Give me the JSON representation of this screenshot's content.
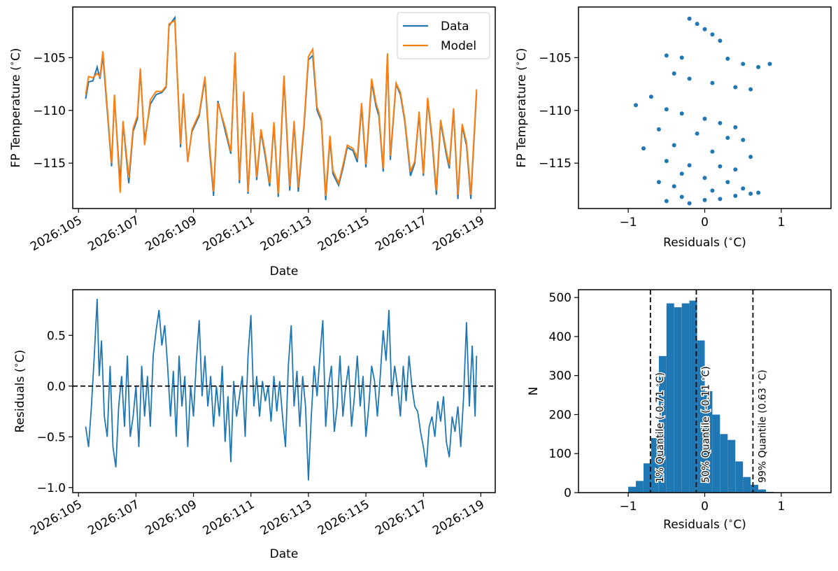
{
  "chart_data": [
    {
      "id": "top-left",
      "type": "line",
      "xlabel": "Date",
      "ylabel": "FP Temperature ($^\\circ$C)",
      "ylabel_text": "FP Temperature (",
      "ylabel_unit": "C)",
      "xlim": [
        104.8,
        119.5
      ],
      "ylim": [
        -119.3,
        -100.2
      ],
      "xticks": [
        105,
        107,
        109,
        111,
        113,
        115,
        117,
        119
      ],
      "xtick_labels": [
        "2026:105",
        "2026:107",
        "2026:109",
        "2026:111",
        "2026:113",
        "2026:115",
        "2026:117",
        "2026:119"
      ],
      "yticks": [
        -105,
        -110,
        -115
      ],
      "ytick_labels": [
        "−105",
        "−110",
        "−115"
      ],
      "legend": {
        "position": "top-right",
        "entries": [
          "Data",
          "Model"
        ]
      },
      "series": [
        {
          "name": "Data",
          "color": "#1f77b4",
          "x": [
            105.25,
            105.35,
            105.5,
            105.65,
            105.75,
            105.85,
            106.0,
            106.15,
            106.25,
            106.45,
            106.55,
            106.75,
            106.9,
            107.05,
            107.15,
            107.3,
            107.5,
            107.7,
            107.9,
            108.05,
            108.15,
            108.35,
            108.45,
            108.55,
            108.65,
            108.8,
            108.95,
            109.2,
            109.4,
            109.55,
            109.7,
            109.85,
            110.1,
            110.3,
            110.45,
            110.6,
            110.75,
            110.9,
            111.05,
            111.2,
            111.35,
            111.5,
            111.65,
            111.8,
            111.95,
            112.15,
            112.35,
            112.5,
            112.65,
            112.85,
            113.0,
            113.15,
            113.3,
            113.45,
            113.6,
            113.75,
            113.85,
            114.05,
            114.2,
            114.35,
            114.55,
            114.7,
            114.85,
            115.0,
            115.2,
            115.35,
            115.45,
            115.6,
            115.75,
            115.85,
            116.05,
            116.2,
            116.35,
            116.55,
            116.7,
            116.85,
            117.0,
            117.15,
            117.3,
            117.45,
            117.6,
            117.8,
            117.9,
            118.05,
            118.2,
            118.35,
            118.5,
            118.65,
            118.85
          ],
          "y": [
            -108.9,
            -107.3,
            -107.2,
            -105.9,
            -107.0,
            -104.8,
            -110.0,
            -115.3,
            -108.8,
            -116.9,
            -111.2,
            -116.9,
            -112.0,
            -110.8,
            -106.2,
            -112.9,
            -109.4,
            -108.5,
            -108.3,
            -107.8,
            -102.0,
            -101.2,
            -107.5,
            -113.5,
            -108.6,
            -114.8,
            -112.0,
            -110.5,
            -107.0,
            -113.4,
            -118.1,
            -109.1,
            -111.9,
            -114.1,
            -104.6,
            -116.9,
            -108.3,
            -117.9,
            -110.4,
            -116.6,
            -112.0,
            -114.4,
            -117.2,
            -111.3,
            -118.2,
            -107.0,
            -117.6,
            -111.2,
            -117.7,
            -111.4,
            -105.2,
            -104.8,
            -110.0,
            -111.0,
            -118.5,
            -112.7,
            -116.0,
            -117.1,
            -115.5,
            -113.5,
            -113.8,
            -114.9,
            -109.6,
            -115.4,
            -107.3,
            -109.6,
            -110.5,
            -115.8,
            -104.8,
            -114.7,
            -107.5,
            -108.5,
            -111.0,
            -116.2,
            -115.0,
            -110.4,
            -116.2,
            -109.0,
            -112.8,
            -118.0,
            -111.1,
            -114.2,
            -115.5,
            -110.0,
            -118.4,
            -111.5,
            -113.3,
            -118.4,
            -108.3
          ]
        },
        {
          "name": "Model",
          "color": "#ff7f0e",
          "x": [
            105.25,
            105.35,
            105.5,
            105.65,
            105.75,
            105.85,
            106.0,
            106.15,
            106.25,
            106.45,
            106.55,
            106.75,
            106.9,
            107.05,
            107.15,
            107.3,
            107.5,
            107.7,
            107.9,
            108.05,
            108.15,
            108.35,
            108.45,
            108.55,
            108.65,
            108.8,
            108.95,
            109.2,
            109.4,
            109.55,
            109.7,
            109.85,
            110.1,
            110.3,
            110.45,
            110.6,
            110.75,
            110.9,
            111.05,
            111.2,
            111.35,
            111.5,
            111.65,
            111.8,
            111.95,
            112.15,
            112.35,
            112.5,
            112.65,
            112.85,
            113.0,
            113.15,
            113.3,
            113.45,
            113.6,
            113.75,
            113.85,
            114.05,
            114.2,
            114.35,
            114.55,
            114.7,
            114.85,
            115.0,
            115.2,
            115.35,
            115.45,
            115.6,
            115.75,
            115.85,
            116.05,
            116.2,
            116.35,
            116.55,
            116.7,
            116.85,
            117.0,
            117.15,
            117.3,
            117.45,
            117.6,
            117.8,
            117.9,
            118.05,
            118.2,
            118.35,
            118.5,
            118.65,
            118.85
          ],
          "y": [
            -108.5,
            -106.8,
            -106.9,
            -106.5,
            -106.8,
            -104.4,
            -109.7,
            -115.0,
            -108.5,
            -117.8,
            -111.0,
            -116.4,
            -111.7,
            -110.5,
            -106.0,
            -113.3,
            -109.0,
            -108.2,
            -108.2,
            -107.7,
            -101.8,
            -101.5,
            -107.4,
            -113.2,
            -108.4,
            -114.9,
            -111.8,
            -110.3,
            -106.8,
            -113.0,
            -117.7,
            -109.3,
            -111.6,
            -113.9,
            -104.5,
            -116.6,
            -108.2,
            -117.7,
            -110.2,
            -116.3,
            -111.8,
            -114.1,
            -116.9,
            -111.1,
            -117.9,
            -106.7,
            -117.2,
            -111.0,
            -117.3,
            -111.1,
            -104.9,
            -104.2,
            -109.7,
            -110.8,
            -118.1,
            -112.4,
            -115.7,
            -116.9,
            -115.2,
            -113.3,
            -113.6,
            -114.5,
            -109.3,
            -115.1,
            -107.0,
            -109.3,
            -110.2,
            -115.5,
            -104.6,
            -114.3,
            -107.4,
            -108.3,
            -110.8,
            -115.8,
            -114.8,
            -110.1,
            -116.0,
            -108.8,
            -112.5,
            -117.6,
            -110.9,
            -113.9,
            -115.2,
            -109.8,
            -118.0,
            -111.3,
            -113.0,
            -118.0,
            -108.0
          ]
        }
      ]
    },
    {
      "id": "top-right",
      "type": "scatter",
      "xlabel": "Residuals ($^\\circ$C)",
      "xlabel_text": "Residuals (",
      "xlabel_unit": "C)",
      "ylabel": "FP Temperature ($^\\circ$C)",
      "ylabel_text": "FP Temperature (",
      "ylabel_unit": "C)",
      "xlim": [
        -1.65,
        1.65
      ],
      "ylim": [
        -119.3,
        -100.2
      ],
      "xticks": [
        -1,
        0,
        1
      ],
      "xtick_labels": [
        "−1",
        "0",
        "1"
      ],
      "yticks": [
        -105,
        -110,
        -115
      ],
      "ytick_labels": [
        "−105",
        "−110",
        "−115"
      ],
      "series": [
        {
          "color": "#1f77b4",
          "x": [
            -0.2,
            -0.1,
            0.0,
            0.1,
            0.2,
            -0.5,
            -0.3,
            0.3,
            0.5,
            0.7,
            0.85,
            -0.4,
            -0.2,
            0.1,
            0.4,
            0.6,
            -0.7,
            -0.9,
            -0.5,
            -0.3,
            0.0,
            0.2,
            0.4,
            -0.6,
            -0.1,
            0.3,
            0.5,
            -0.8,
            -0.4,
            0.1,
            0.6,
            -0.5,
            -0.2,
            0.2,
            0.4,
            -0.3,
            0.0,
            0.3,
            -0.6,
            -0.4,
            0.1,
            0.5,
            0.7,
            -0.3,
            0.0,
            0.4,
            -0.5,
            -0.2,
            0.2,
            0.6
          ],
          "y": [
            -101.3,
            -101.8,
            -102.3,
            -102.8,
            -103.4,
            -104.8,
            -105.0,
            -105.1,
            -105.6,
            -105.9,
            -105.6,
            -106.5,
            -107.0,
            -107.4,
            -107.8,
            -108.0,
            -108.7,
            -109.5,
            -109.9,
            -110.3,
            -110.8,
            -111.2,
            -111.6,
            -111.8,
            -112.2,
            -112.6,
            -112.8,
            -113.6,
            -113.3,
            -113.9,
            -114.4,
            -114.8,
            -115.2,
            -115.3,
            -115.6,
            -116.0,
            -116.4,
            -116.8,
            -116.8,
            -117.2,
            -117.6,
            -117.4,
            -117.8,
            -118.2,
            -118.5,
            -118.1,
            -118.6,
            -118.8,
            -118.4,
            -117.9
          ]
        }
      ]
    },
    {
      "id": "bottom-left",
      "type": "line",
      "xlabel": "Date",
      "ylabel": "Residuals ($^\\circ$C)",
      "ylabel_text": "Residuals (",
      "ylabel_unit": "C)",
      "xlim": [
        104.8,
        119.5
      ],
      "ylim": [
        -1.05,
        0.95
      ],
      "xticks": [
        105,
        107,
        109,
        111,
        113,
        115,
        117,
        119
      ],
      "xtick_labels": [
        "2026:105",
        "2026:107",
        "2026:109",
        "2026:111",
        "2026:113",
        "2026:115",
        "2026:117",
        "2026:119"
      ],
      "yticks": [
        0.5,
        0.0,
        -0.5,
        -1.0
      ],
      "ytick_labels": [
        "0.5",
        "0.0",
        "−0.5",
        "−1.0"
      ],
      "hline": 0.0,
      "series": [
        {
          "color": "#1f77b4",
          "x": [
            105.25,
            105.35,
            105.45,
            105.55,
            105.65,
            105.72,
            105.8,
            105.9,
            106.0,
            106.1,
            106.2,
            106.3,
            106.4,
            106.5,
            106.6,
            106.7,
            106.8,
            106.9,
            107.0,
            107.1,
            107.2,
            107.3,
            107.4,
            107.5,
            107.6,
            107.7,
            107.8,
            107.9,
            108.0,
            108.1,
            108.2,
            108.3,
            108.4,
            108.5,
            108.6,
            108.7,
            108.8,
            108.9,
            109.0,
            109.1,
            109.2,
            109.3,
            109.4,
            109.5,
            109.6,
            109.7,
            109.8,
            109.9,
            110.0,
            110.1,
            110.2,
            110.3,
            110.4,
            110.5,
            110.6,
            110.7,
            110.8,
            110.9,
            111.0,
            111.1,
            111.2,
            111.3,
            111.4,
            111.5,
            111.6,
            111.7,
            111.8,
            111.9,
            112.0,
            112.1,
            112.2,
            112.3,
            112.4,
            112.5,
            112.6,
            112.7,
            112.8,
            112.9,
            113.0,
            113.1,
            113.2,
            113.3,
            113.4,
            113.5,
            113.6,
            113.7,
            113.8,
            113.9,
            114.0,
            114.1,
            114.2,
            114.3,
            114.4,
            114.5,
            114.6,
            114.7,
            114.8,
            114.9,
            115.0,
            115.1,
            115.2,
            115.3,
            115.4,
            115.5,
            115.6,
            115.7,
            115.8,
            115.9,
            116.0,
            116.1,
            116.2,
            116.3,
            116.4,
            116.5,
            116.6,
            116.7,
            116.8,
            116.9,
            117.0,
            117.1,
            117.2,
            117.3,
            117.4,
            117.5,
            117.6,
            117.7,
            117.8,
            117.9,
            118.0,
            118.1,
            118.2,
            118.3,
            118.4,
            118.5,
            118.6,
            118.7,
            118.8,
            118.85
          ],
          "y": [
            -0.4,
            -0.6,
            -0.2,
            0.3,
            0.86,
            0.1,
            0.45,
            -0.3,
            -0.5,
            0.2,
            -0.6,
            -0.8,
            -0.2,
            0.1,
            -0.4,
            0.3,
            -0.5,
            -0.3,
            0.0,
            -0.6,
            0.2,
            -0.3,
            0.1,
            -0.4,
            0.3,
            0.55,
            0.75,
            0.4,
            0.6,
            0.2,
            -0.3,
            0.15,
            -0.5,
            0.3,
            -0.2,
            0.1,
            -0.6,
            0.0,
            -0.3,
            0.25,
            0.65,
            -0.1,
            0.3,
            -0.2,
            0.1,
            -0.4,
            0.0,
            -0.3,
            0.2,
            -0.55,
            -0.1,
            -0.75,
            0.05,
            -0.3,
            -0.1,
            0.1,
            -0.5,
            0.3,
            0.7,
            -0.2,
            0.1,
            -0.3,
            0.05,
            -0.15,
            0.0,
            -0.35,
            0.1,
            -0.25,
            0.05,
            -0.3,
            -0.6,
            0.2,
            0.6,
            -0.2,
            0.15,
            -0.4,
            0.1,
            -0.2,
            -0.93,
            -0.3,
            0.2,
            -0.1,
            0.3,
            0.65,
            -0.4,
            0.0,
            0.2,
            -0.45,
            -0.2,
            0.3,
            -0.3,
            0.0,
            0.2,
            -0.4,
            -0.1,
            0.3,
            -0.2,
            0.1,
            -0.5,
            -0.2,
            0.2,
            0.05,
            -0.3,
            0.1,
            0.55,
            0.25,
            0.75,
            -0.1,
            0.2,
            0.0,
            -0.3,
            0.2,
            -0.15,
            0.3,
            0.0,
            -0.2,
            -0.25,
            -0.45,
            -0.6,
            -0.8,
            -0.4,
            -0.3,
            -0.5,
            -0.15,
            -0.35,
            -0.1,
            -0.55,
            -0.7,
            -0.3,
            -0.45,
            -0.2,
            -0.6,
            -0.1,
            0.63,
            -0.2,
            0.4,
            -0.3,
            0.3
          ]
        }
      ]
    },
    {
      "id": "bottom-right",
      "type": "bar",
      "xlabel": "Residuals ($^\\circ$C)",
      "xlabel_text": "Residuals (",
      "xlabel_unit": "C)",
      "ylabel": "N",
      "xlim": [
        -1.65,
        1.65
      ],
      "ylim": [
        0,
        520
      ],
      "xticks": [
        -1,
        0,
        1
      ],
      "xtick_labels": [
        "−1",
        "0",
        "1"
      ],
      "yticks": [
        0,
        100,
        200,
        300,
        400,
        500
      ],
      "ytick_labels": [
        "0",
        "100",
        "200",
        "300",
        "400",
        "500"
      ],
      "bin_edges": [
        -1.0,
        -0.9,
        -0.8,
        -0.7,
        -0.6,
        -0.5,
        -0.4,
        -0.3,
        -0.2,
        -0.1,
        0.0,
        0.1,
        0.2,
        0.3,
        0.4,
        0.5,
        0.6,
        0.7,
        0.8,
        0.9
      ],
      "counts": [
        15,
        30,
        75,
        140,
        350,
        485,
        475,
        485,
        492,
        390,
        260,
        200,
        150,
        135,
        80,
        40,
        20,
        8,
        2
      ],
      "color": "#1f77b4",
      "quantiles": [
        {
          "x": -0.71,
          "label": "1% Quantile (-0.71 $^\\circ$C)",
          "text": "1% Quantile (-0.71 ",
          "unit": "C)"
        },
        {
          "x": -0.11,
          "label": "50% Quantile (-0.11 $^\\circ$C)",
          "text": "50% Quantile (-0.11 ",
          "unit": "C)"
        },
        {
          "x": 0.63,
          "label": "99% Quantile (0.63 $^\\circ$C)",
          "text": "99% Quantile (0.63 ",
          "unit": "C)"
        }
      ]
    }
  ]
}
